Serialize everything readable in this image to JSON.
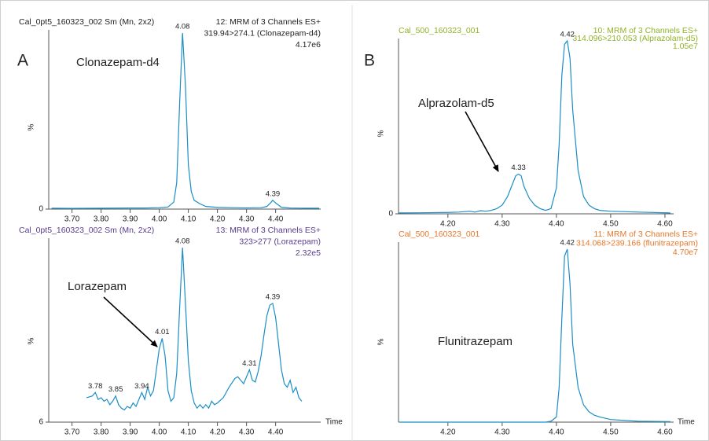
{
  "chart_data": [
    {
      "type": "line",
      "header_left": "Cal_0pt5_160323_002 Sm (Mn, 2x2)",
      "header_right": [
        "12: MRM of 3 Channels ES+",
        "319.94>274.1 (Clonazepam-d4)",
        "4.17e6"
      ],
      "header_color": "#222222",
      "panel_label": "A",
      "annotation": "Clonazepam-d4",
      "y_label": "%",
      "color": "#1b8ec8",
      "xlim": [
        3.62,
        4.555
      ],
      "ylim": [
        0,
        100
      ],
      "xticks": [
        {
          "value": 3.7,
          "label": "3.70"
        },
        {
          "value": 3.8,
          "label": "3.80"
        },
        {
          "value": 3.9,
          "label": "3.90"
        },
        {
          "value": 4.0,
          "label": "4.00"
        },
        {
          "value": 4.1,
          "label": "4.10"
        },
        {
          "value": 4.2,
          "label": "4.20"
        },
        {
          "value": 4.3,
          "label": "4.30"
        },
        {
          "value": 4.4,
          "label": "4.40"
        }
      ],
      "yticks": [
        0
      ],
      "x": [
        3.63,
        3.7,
        3.8,
        3.9,
        3.95,
        4.0,
        4.03,
        4.05,
        4.06,
        4.07,
        4.08,
        4.09,
        4.1,
        4.11,
        4.12,
        4.14,
        4.16,
        4.2,
        4.25,
        4.3,
        4.35,
        4.37,
        4.385,
        4.39,
        4.4,
        4.42,
        4.45,
        4.5,
        4.55
      ],
      "values": [
        0.5,
        0.4,
        0.5,
        0.6,
        0.6,
        0.8,
        1.2,
        4,
        15,
        60,
        100,
        70,
        25,
        10,
        5,
        3,
        1.5,
        1,
        0.8,
        0.7,
        0.8,
        1.5,
        4,
        5,
        3.5,
        1,
        0.6,
        0.5,
        0.5
      ],
      "peak_labels": [
        4.08,
        4.39
      ]
    },
    {
      "type": "line",
      "header_left": "Cal_500_160323_001",
      "header_right": [
        "10: MRM of 3 Channels ES+",
        "314.096>210.053 (Alprazolam-d5)",
        "1.05e7"
      ],
      "header_color": "#8fb428",
      "panel_label": "B",
      "annotation": "Alprazolam-d5",
      "y_label": "%",
      "color": "#1b8ec8",
      "xlim": [
        4.109,
        4.616
      ],
      "ylim": [
        0,
        100
      ],
      "xticks": [
        {
          "value": 4.2,
          "label": "4.20"
        },
        {
          "value": 4.3,
          "label": "4.30"
        },
        {
          "value": 4.4,
          "label": "4.40"
        },
        {
          "value": 4.5,
          "label": "4.50"
        },
        {
          "value": 4.6,
          "label": "4.60"
        }
      ],
      "yticks": [
        0
      ],
      "x": [
        4.11,
        4.15,
        4.2,
        4.22,
        4.24,
        4.25,
        4.26,
        4.27,
        4.28,
        4.29,
        4.3,
        4.31,
        4.32,
        4.325,
        4.33,
        4.335,
        4.34,
        4.35,
        4.36,
        4.37,
        4.38,
        4.39,
        4.4,
        4.405,
        4.41,
        4.415,
        4.42,
        4.425,
        4.43,
        4.44,
        4.45,
        4.46,
        4.47,
        4.48,
        4.5,
        4.55,
        4.61
      ],
      "values": [
        0.5,
        0.6,
        0.8,
        1,
        1.5,
        1,
        1.8,
        1.5,
        2,
        3,
        5,
        10,
        18,
        22,
        23,
        22,
        16,
        9,
        5,
        3,
        2,
        3,
        15,
        40,
        80,
        98,
        100,
        90,
        60,
        25,
        10,
        5,
        3,
        2,
        1.5,
        1,
        0.5
      ],
      "peak_labels": [
        4.33,
        4.42
      ]
    },
    {
      "type": "line",
      "header_left": "Cal_0pt5_160323_002 Sm (Mn, 2x2)",
      "header_right": [
        "13: MRM of 3 Channels ES+",
        "323>277 (Lorazepam)",
        "2.32e5"
      ],
      "header_color": "#5a3b8e",
      "annotation": "Lorazepam",
      "y_label": "%",
      "x_label": "Time",
      "color": "#1b8ec8",
      "xlim": [
        3.62,
        4.555
      ],
      "ylim": [
        0,
        100
      ],
      "xticks": [
        {
          "value": 3.7,
          "label": "3.70"
        },
        {
          "value": 3.8,
          "label": "3.80"
        },
        {
          "value": 3.9,
          "label": "3.90"
        },
        {
          "value": 4.0,
          "label": "4.00"
        },
        {
          "value": 4.1,
          "label": "4.10"
        },
        {
          "value": 4.2,
          "label": "4.20"
        },
        {
          "value": 4.3,
          "label": "4.30"
        },
        {
          "value": 4.4,
          "label": "4.40"
        }
      ],
      "yticks": [
        {
          "value": 0,
          "label": "6"
        }
      ],
      "x": [
        3.75,
        3.77,
        3.78,
        3.79,
        3.8,
        3.81,
        3.82,
        3.83,
        3.84,
        3.85,
        3.86,
        3.87,
        3.88,
        3.89,
        3.9,
        3.91,
        3.92,
        3.93,
        3.94,
        3.95,
        3.96,
        3.97,
        3.98,
        3.99,
        4.0,
        4.01,
        4.02,
        4.03,
        4.04,
        4.05,
        4.06,
        4.07,
        4.08,
        4.09,
        4.1,
        4.11,
        4.12,
        4.13,
        4.14,
        4.15,
        4.16,
        4.17,
        4.18,
        4.19,
        4.2,
        4.22,
        4.24,
        4.26,
        4.27,
        4.28,
        4.29,
        4.3,
        4.31,
        4.32,
        4.33,
        4.34,
        4.35,
        4.36,
        4.37,
        4.38,
        4.39,
        4.4,
        4.41,
        4.42,
        4.43,
        4.44,
        4.45,
        4.46,
        4.47,
        4.48,
        4.49
      ],
      "values": [
        14,
        15,
        17,
        13,
        14,
        12,
        13,
        10,
        12,
        15,
        10,
        8,
        7,
        9,
        8,
        11,
        9,
        13,
        17,
        13,
        20,
        15,
        18,
        30,
        42,
        48,
        38,
        18,
        12,
        14,
        28,
        65,
        100,
        68,
        35,
        18,
        11,
        8,
        10,
        8,
        10,
        8,
        12,
        10,
        11,
        14,
        20,
        25,
        26,
        24,
        22,
        26,
        30,
        24,
        23,
        29,
        38,
        50,
        61,
        67,
        68,
        60,
        45,
        30,
        22,
        20,
        24,
        17,
        20,
        14,
        12
      ],
      "peak_labels": [
        3.78,
        3.85,
        3.94,
        4.01,
        4.08,
        4.31,
        4.39
      ]
    },
    {
      "type": "line",
      "header_left": "Cal_500_160323_001",
      "header_right": [
        "11: MRM of 3 Channels ES+",
        "314.068>239.166 (flunitrazepam)",
        "4.70e7"
      ],
      "header_color": "#e8782a",
      "annotation": "Flunitrazepam",
      "y_label": "%",
      "x_label": "Time",
      "color": "#1b8ec8",
      "xlim": [
        4.109,
        4.616
      ],
      "ylim": [
        0,
        100
      ],
      "xticks": [
        {
          "value": 4.2,
          "label": "4.20"
        },
        {
          "value": 4.3,
          "label": "4.30"
        },
        {
          "value": 4.4,
          "label": "4.40"
        },
        {
          "value": 4.5,
          "label": "4.50"
        },
        {
          "value": 4.6,
          "label": "4.60"
        }
      ],
      "yticks": [],
      "x": [
        4.11,
        4.3,
        4.38,
        4.39,
        4.4,
        4.405,
        4.41,
        4.415,
        4.42,
        4.425,
        4.43,
        4.44,
        4.45,
        4.46,
        4.47,
        4.48,
        4.5,
        4.55,
        4.61
      ],
      "values": [
        0,
        0,
        0,
        0.5,
        3,
        20,
        60,
        96,
        100,
        80,
        45,
        20,
        10,
        6,
        4,
        3,
        1.5,
        0.5,
        0.3
      ],
      "peak_labels": [
        4.42
      ]
    }
  ]
}
